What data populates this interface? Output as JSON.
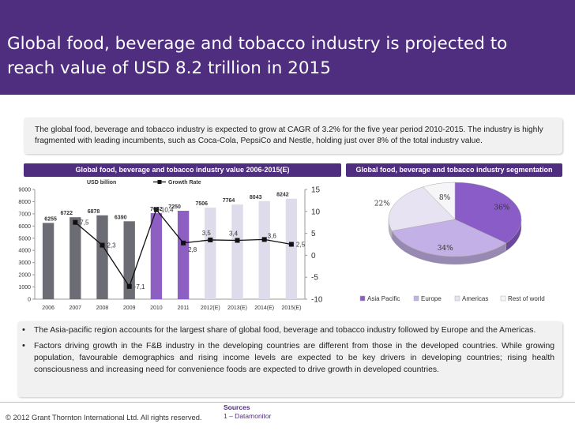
{
  "slide": {
    "title": "Global food, beverage and tobacco industry is projected to reach value of USD 8.2 trillion in 2015",
    "intro": "The global food, beverage and tobacco industry is expected to grow at CAGR of 3.2% for the five year period 2010-2015. The industry is highly fragmented with leading incumbents, such as Coca-Cola, PepsiCo and Nestle, holding just over 8% of the total industry value.",
    "bullets": [
      "The Asia-pacific region accounts for the largest share of global food, beverage and tobacco industry followed by Europe and the Americas.",
      "Factors driving growth in the F&B industry in the developing countries are different from those in the developed countries. While growing population, favourable demographics and rising income levels are expected to be key drivers in developing countries; rising health consciousness and increasing need for convenience foods are expected to drive growth in developed countries."
    ],
    "copyright": "© 2012 Grant Thornton International Ltd. All rights reserved.",
    "sources_heading": "Sources",
    "sources_item": "1 – Datamonitor",
    "colors": {
      "brand": "#4f2d7f"
    }
  },
  "chart_data": [
    {
      "type": "bar",
      "title": "Global food, beverage and tobacco industry value  2006-2015(E)",
      "categories": [
        "2006",
        "2007",
        "2008",
        "2009",
        "2010",
        "2011",
        "2012(E)",
        "2013(E)",
        "2014(E)",
        "2015(E)"
      ],
      "series": [
        {
          "name": "USD billion",
          "type": "bar",
          "axis": "left",
          "values": [
            6255,
            6722,
            6878,
            6390,
            7052,
            7250,
            7506,
            7764,
            8043,
            8242
          ],
          "labels": [
            "6255",
            "6722",
            "6878",
            "6390",
            "7052",
            "7250",
            "7506",
            "7764",
            "8043",
            "8242"
          ]
        },
        {
          "name": "Growth Rate",
          "type": "line",
          "axis": "right",
          "values": [
            null,
            7.5,
            2.3,
            -7.1,
            10.4,
            2.8,
            3.5,
            3.4,
            3.6,
            2.5
          ],
          "labels": [
            "",
            "7,5",
            "2,3",
            "-7,1",
            "10,4",
            "2,8",
            "3,5",
            "3,4",
            "3,6",
            "2,5"
          ]
        }
      ],
      "ylim_left": [
        0,
        9000
      ],
      "yticks_left": [
        0,
        1000,
        2000,
        3000,
        4000,
        5000,
        6000,
        7000,
        8000,
        9000
      ],
      "ylim_right": [
        -10,
        15
      ],
      "yticks_right": [
        -10,
        -5,
        0,
        5,
        10,
        15
      ],
      "legend_position": "top",
      "grid": false,
      "colors": {
        "historic_bar": "#6c6c74",
        "current_bar": "#8e5fc2",
        "forecast_bar": "#dedcea",
        "line": "#111111"
      }
    },
    {
      "type": "pie",
      "title": "Global food, beverage and tobacco industry segmentation",
      "labels": [
        "Asia Pacific",
        "Europe",
        "Americas",
        "Rest of world"
      ],
      "values": [
        36,
        34,
        22,
        8
      ],
      "value_labels": [
        "36%",
        "34%",
        "22%",
        "8%"
      ],
      "legend_position": "bottom",
      "colors": [
        "#8a5cc8",
        "#c3b0e6",
        "#e8e3f2",
        "#f6f6f8"
      ]
    }
  ]
}
